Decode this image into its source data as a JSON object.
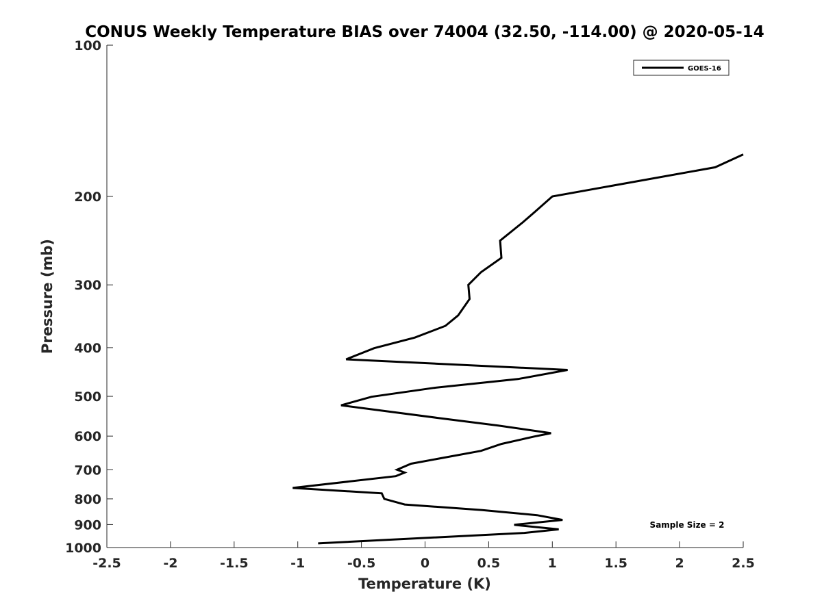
{
  "chart_data": {
    "type": "line",
    "title": "CONUS Weekly Temperature BIAS over 74004 (32.50, -114.00) @ 2020-05-14",
    "xlabel": "Temperature (K)",
    "ylabel": "Pressure (mb)",
    "xlim": [
      -2.5,
      2.5
    ],
    "ylim": [
      100,
      1000
    ],
    "y_scale": "log",
    "y_reversed": true,
    "grid": false,
    "legend_position": "top-right",
    "x_ticks": [
      {
        "value": -2.5,
        "label": "-2.5"
      },
      {
        "value": -2,
        "label": "-2"
      },
      {
        "value": -1.5,
        "label": "-1.5"
      },
      {
        "value": -1,
        "label": "-1"
      },
      {
        "value": -0.5,
        "label": "-0.5"
      },
      {
        "value": 0,
        "label": "0"
      },
      {
        "value": 0.5,
        "label": "0.5"
      },
      {
        "value": 1,
        "label": "1"
      },
      {
        "value": 1.5,
        "label": "1.5"
      },
      {
        "value": 2,
        "label": "2"
      },
      {
        "value": 2.5,
        "label": "2.5"
      }
    ],
    "y_ticks": [
      {
        "value": 100,
        "label": "100"
      },
      {
        "value": 200,
        "label": "200"
      },
      {
        "value": 300,
        "label": "300"
      },
      {
        "value": 400,
        "label": "400"
      },
      {
        "value": 500,
        "label": "500"
      },
      {
        "value": 600,
        "label": "600"
      },
      {
        "value": 700,
        "label": "700"
      },
      {
        "value": 800,
        "label": "800"
      },
      {
        "value": 900,
        "label": "900"
      },
      {
        "value": 1000,
        "label": "1000"
      }
    ],
    "series": [
      {
        "name": "GOES-16",
        "color": "#000000",
        "points": [
          {
            "x": 2.5,
            "y": 165
          },
          {
            "x": 2.28,
            "y": 175
          },
          {
            "x": 1.0,
            "y": 200
          },
          {
            "x": 0.86,
            "y": 215
          },
          {
            "x": 0.77,
            "y": 225
          },
          {
            "x": 0.59,
            "y": 245
          },
          {
            "x": 0.6,
            "y": 265
          },
          {
            "x": 0.44,
            "y": 283
          },
          {
            "x": 0.34,
            "y": 300
          },
          {
            "x": 0.35,
            "y": 320
          },
          {
            "x": 0.26,
            "y": 345
          },
          {
            "x": 0.16,
            "y": 362
          },
          {
            "x": -0.08,
            "y": 382
          },
          {
            "x": -0.4,
            "y": 401
          },
          {
            "x": -0.62,
            "y": 422
          },
          {
            "x": 1.12,
            "y": 443
          },
          {
            "x": 0.73,
            "y": 462
          },
          {
            "x": 0.07,
            "y": 481
          },
          {
            "x": -0.42,
            "y": 501
          },
          {
            "x": -0.66,
            "y": 521
          },
          {
            "x": 0.1,
            "y": 552
          },
          {
            "x": 0.58,
            "y": 572
          },
          {
            "x": 0.99,
            "y": 592
          },
          {
            "x": 0.86,
            "y": 601
          },
          {
            "x": 0.6,
            "y": 622
          },
          {
            "x": 0.44,
            "y": 642
          },
          {
            "x": -0.11,
            "y": 681
          },
          {
            "x": -0.22,
            "y": 700
          },
          {
            "x": -0.16,
            "y": 709
          },
          {
            "x": -0.23,
            "y": 721
          },
          {
            "x": -1.04,
            "y": 761
          },
          {
            "x": -0.34,
            "y": 780
          },
          {
            "x": -0.32,
            "y": 800
          },
          {
            "x": -0.16,
            "y": 821
          },
          {
            "x": 0.45,
            "y": 842
          },
          {
            "x": 0.88,
            "y": 862
          },
          {
            "x": 1.08,
            "y": 881
          },
          {
            "x": 0.7,
            "y": 901
          },
          {
            "x": 1.05,
            "y": 920
          },
          {
            "x": 0.78,
            "y": 935
          },
          {
            "x": -0.84,
            "y": 981
          }
        ]
      }
    ],
    "annotation": "Sample Size = 2"
  }
}
